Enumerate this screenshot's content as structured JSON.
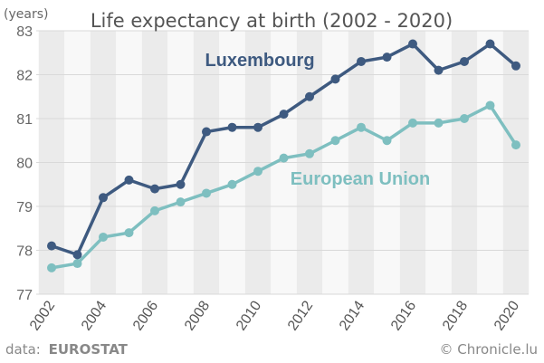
{
  "chart_data": {
    "type": "line",
    "title": "Life expectancy at birth (2002 - 2020)",
    "ylabel": "(years)",
    "xlabel": "",
    "x": [
      2002,
      2003,
      2004,
      2005,
      2006,
      2007,
      2008,
      2009,
      2010,
      2011,
      2012,
      2013,
      2014,
      2015,
      2016,
      2017,
      2018,
      2019,
      2020
    ],
    "x_ticks": [
      "2002",
      "2004",
      "2006",
      "2008",
      "2010",
      "2012",
      "2014",
      "2016",
      "2018",
      "2020"
    ],
    "y_ticks": [
      "77",
      "78",
      "79",
      "80",
      "81",
      "82",
      "83"
    ],
    "ylim": [
      77,
      83
    ],
    "grid": "alternating vertical bands by year",
    "series": [
      {
        "name": "Luxembourg",
        "color": "#3e5a80",
        "values": [
          78.1,
          77.9,
          79.2,
          79.6,
          79.4,
          79.5,
          80.7,
          80.8,
          80.8,
          81.1,
          81.5,
          81.9,
          82.3,
          82.4,
          82.7,
          82.1,
          82.3,
          82.7,
          82.2
        ]
      },
      {
        "name": "European Union",
        "color": "#7ebfc0",
        "values": [
          77.6,
          77.7,
          78.3,
          78.4,
          78.9,
          79.1,
          79.3,
          79.5,
          79.8,
          80.1,
          80.2,
          80.5,
          80.8,
          80.5,
          80.9,
          80.9,
          81.0,
          81.3,
          80.4
        ]
      }
    ]
  },
  "source": {
    "prefix": "data:",
    "name": "EUROSTAT",
    "credit": "© Chronicle.lu"
  }
}
